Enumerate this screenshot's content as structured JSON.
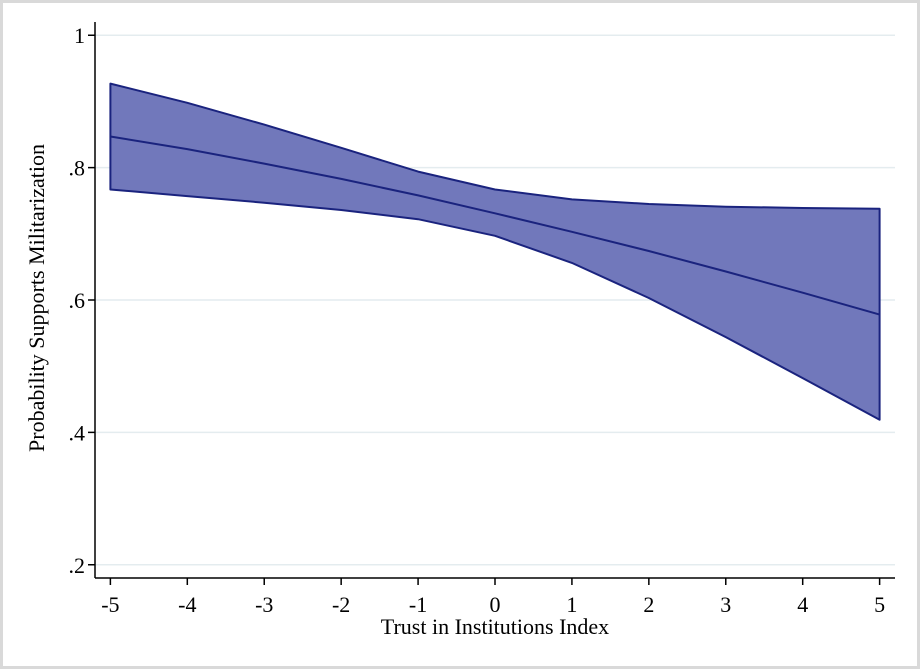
{
  "chart_data": {
    "type": "area",
    "title": "",
    "xlabel": "Trust in Institutions Index",
    "ylabel": "Probability Supports Militarization",
    "x": [
      -5,
      -4,
      -3,
      -2,
      -1,
      0,
      1,
      2,
      3,
      4,
      5
    ],
    "xticks": [
      "-5",
      "-4",
      "-3",
      "-2",
      "-1",
      "0",
      "1",
      "2",
      "3",
      "4",
      "5"
    ],
    "yticks": [
      {
        "value": 0.2,
        "label": ".2"
      },
      {
        "value": 0.4,
        "label": ".4"
      },
      {
        "value": 0.6,
        "label": ".6"
      },
      {
        "value": 0.8,
        "label": ".8"
      },
      {
        "value": 1.0,
        "label": "1"
      }
    ],
    "xlim": [
      -5.2,
      5.2
    ],
    "ylim": [
      0.18,
      1.02
    ],
    "grid": true,
    "series": [
      {
        "role": "prediction",
        "values": [
          0.847,
          0.828,
          0.806,
          0.783,
          0.758,
          0.731,
          0.703,
          0.674,
          0.643,
          0.611,
          0.578
        ]
      },
      {
        "role": "upper_ci",
        "values": [
          0.927,
          0.898,
          0.865,
          0.83,
          0.794,
          0.767,
          0.752,
          0.745,
          0.741,
          0.739,
          0.738
        ]
      },
      {
        "role": "lower_ci",
        "values": [
          0.767,
          0.757,
          0.747,
          0.736,
          0.722,
          0.697,
          0.656,
          0.603,
          0.544,
          0.482,
          0.419
        ]
      }
    ],
    "colors": {
      "band_fill": "#7178bb",
      "line": "#1a237e",
      "grid": "#e4ecef",
      "axis": "#000000"
    }
  }
}
